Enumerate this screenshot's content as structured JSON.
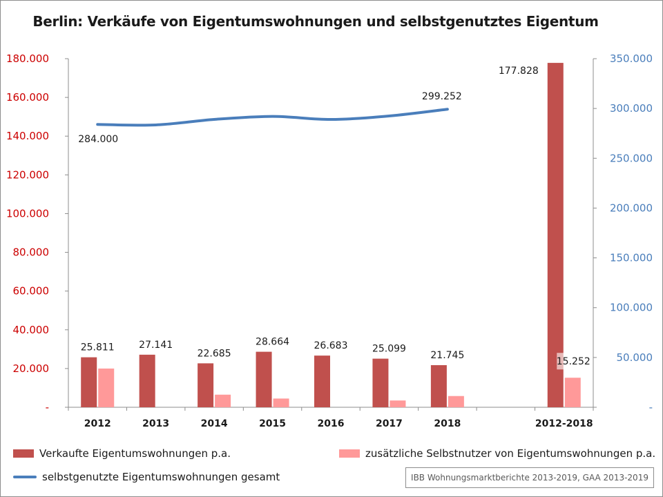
{
  "colors": {
    "sales": "#c0504d",
    "selfusers": "#ff9999",
    "total": "#4a7ebb",
    "left_axis_text": "#cc0000",
    "right_axis_text": "#4a7ebb"
  },
  "chart_data": {
    "type": "bar",
    "title": "Berlin: Verkäufe von Eigentumswohnungen und selbstgenutztes Eigentum",
    "categories": [
      "2012",
      "2013",
      "2014",
      "2015",
      "2016",
      "2017",
      "2018",
      "",
      "2012-2018"
    ],
    "series": [
      {
        "name": "Verkaufte Eigentumswohnungen p.a.",
        "axis": "left",
        "values": [
          25811,
          27141,
          22685,
          28664,
          26683,
          25099,
          21745,
          null,
          177828
        ],
        "labels": [
          "25.811",
          "27.141",
          "22.685",
          "28.664",
          "26.683",
          "25.099",
          "21.745",
          "",
          "177.828"
        ]
      },
      {
        "name": "zusätzliche Selbstnutzer von Eigentumswohnungen p.a.",
        "axis": "left",
        "values": [
          20000,
          0,
          6500,
          4500,
          0,
          3500,
          5800,
          null,
          15252
        ],
        "labels": [
          "",
          "",
          "",
          "",
          "",
          "",
          "",
          "",
          "15.252"
        ]
      },
      {
        "name": "selbstgenutzte Eigentumswohnungen gesamt",
        "axis": "right",
        "type": "line",
        "values": [
          284000,
          283500,
          289000,
          292000,
          289000,
          292500,
          299252,
          null,
          null
        ],
        "labels": [
          "284.000",
          "",
          "",
          "",
          "",
          "",
          "299.252",
          "",
          ""
        ]
      }
    ],
    "y_left": {
      "min": 0,
      "max": 180000,
      "ticks": [
        0,
        20000,
        40000,
        60000,
        80000,
        100000,
        120000,
        140000,
        160000,
        180000
      ],
      "tick_labels": [
        "-",
        "20.000",
        "40.000",
        "60.000",
        "80.000",
        "100.000",
        "120.000",
        "140.000",
        "160.000",
        "180.000"
      ]
    },
    "y_right": {
      "min": 0,
      "max": 350000,
      "ticks": [
        0,
        50000,
        100000,
        150000,
        200000,
        250000,
        300000,
        350000
      ],
      "tick_labels": [
        "-",
        "50.000",
        "100.000",
        "150.000",
        "200.000",
        "250.000",
        "300.000",
        "350.000"
      ]
    },
    "legend_position": "bottom",
    "grid": false
  },
  "source_note": "IBB Wohnungsmarktberichte 2013-2019, GAA 2013-2019"
}
